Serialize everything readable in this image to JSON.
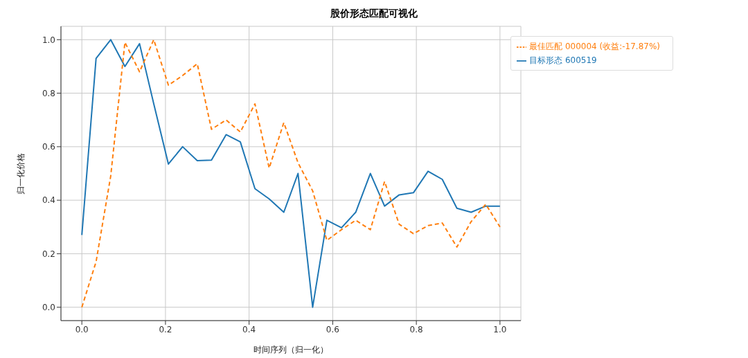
{
  "chart_data": {
    "type": "line",
    "title": "股价形态匹配可视化",
    "xlabel": "时间序列（归一化）",
    "ylabel": "归一化价格",
    "x": [
      0,
      0.034,
      0.069,
      0.103,
      0.138,
      0.172,
      0.207,
      0.241,
      0.276,
      0.31,
      0.345,
      0.379,
      0.414,
      0.448,
      0.483,
      0.517,
      0.552,
      0.586,
      0.621,
      0.655,
      0.69,
      0.724,
      0.759,
      0.793,
      0.828,
      0.862,
      0.897,
      0.931,
      0.966,
      1
    ],
    "series": [
      {
        "name": "目标形态 600519",
        "color": "#1f77b4",
        "line_style": "solid",
        "values": [
          0.27,
          0.93,
          1.0,
          0.9,
          0.985,
          0.76,
          0.535,
          0.6,
          0.548,
          0.55,
          0.645,
          0.618,
          0.443,
          0.405,
          0.355,
          0.5,
          0.0,
          0.325,
          0.297,
          0.355,
          0.5,
          0.378,
          0.42,
          0.428,
          0.508,
          0.478,
          0.37,
          0.355,
          0.378,
          0.378
        ]
      },
      {
        "name": "最佳匹配 000004 (收益:-17.87%)",
        "color": "#ff7f0e",
        "line_style": "dashed",
        "values": [
          0.0,
          0.17,
          0.49,
          0.99,
          0.88,
          1.0,
          0.83,
          0.866,
          0.91,
          0.665,
          0.7,
          0.655,
          0.76,
          0.52,
          0.69,
          0.54,
          0.435,
          0.25,
          0.29,
          0.325,
          0.29,
          0.47,
          0.31,
          0.275,
          0.305,
          0.315,
          0.225,
          0.32,
          0.385,
          0.3
        ]
      }
    ],
    "xlim": [
      -0.05,
      1.05
    ],
    "xticks": [
      {
        "value": 0,
        "label": "0.0"
      },
      {
        "value": 0.2,
        "label": "0.2"
      },
      {
        "value": 0.4,
        "label": "0.4"
      },
      {
        "value": 0.6,
        "label": "0.6"
      },
      {
        "value": 0.8,
        "label": "0.8"
      },
      {
        "value": 1,
        "label": "1.0"
      }
    ],
    "ylim": [
      -0.05,
      1.05
    ],
    "yticks": [
      {
        "value": 0,
        "label": "0.0"
      },
      {
        "value": 0.2,
        "label": "0.2"
      },
      {
        "value": 0.4,
        "label": "0.4"
      },
      {
        "value": 0.6,
        "label": "0.6"
      },
      {
        "value": 0.8,
        "label": "0.8"
      },
      {
        "value": 1,
        "label": "1.0"
      }
    ],
    "grid": true,
    "legend": "top right",
    "marker": "none"
  }
}
